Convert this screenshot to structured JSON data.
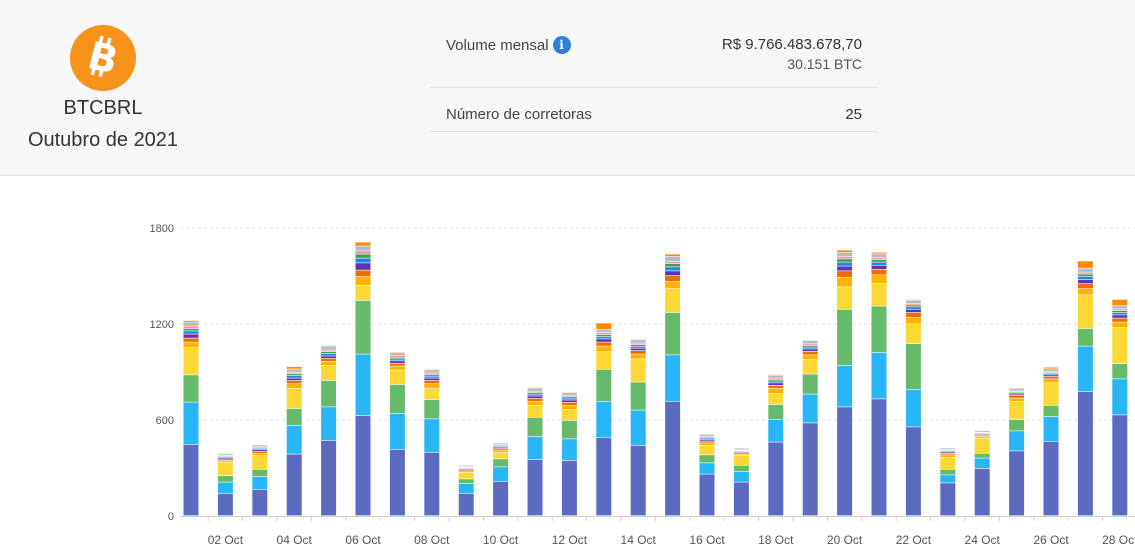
{
  "header": {
    "pair": "BTCBRL",
    "period": "Outubro de 2021",
    "coin_icon": "bitcoin-icon",
    "coin_color": "#f7931a",
    "volume_label": "Volume mensal",
    "volume_brl": "R$ 9.766.483.678,70",
    "volume_btc": "30.151 BTC",
    "info_icon": "info-icon",
    "brokers_label": "Número de corretoras",
    "brokers_value": "25"
  },
  "chart_data": {
    "type": "bar",
    "stacked": true,
    "grid": true,
    "ylim": [
      0,
      1800
    ],
    "y_ticks": [
      "0",
      "600",
      "1200",
      "1800"
    ],
    "categories": [
      "01 Oct",
      "02 Oct",
      "03 Oct",
      "04 Oct",
      "05 Oct",
      "06 Oct",
      "07 Oct",
      "08 Oct",
      "09 Oct",
      "10 Oct",
      "11 Oct",
      "12 Oct",
      "13 Oct",
      "14 Oct",
      "15 Oct",
      "16 Oct",
      "17 Oct",
      "18 Oct",
      "19 Oct",
      "20 Oct",
      "21 Oct",
      "22 Oct",
      "23 Oct",
      "24 Oct",
      "25 Oct",
      "26 Oct",
      "27 Oct",
      "28 Oct"
    ],
    "x_tick_labels": [
      "02 Oct",
      "04 Oct",
      "06 Oct",
      "08 Oct",
      "10 Oct",
      "12 Oct",
      "14 Oct",
      "16 Oct",
      "18 Oct",
      "20 Oct",
      "22 Oct",
      "24 Oct",
      "26 Oct",
      "28 Oct"
    ],
    "series": [
      {
        "color": "#5c6bc0",
        "values": [
          445,
          140,
          165,
          385,
          470,
          625,
          415,
          395,
          140,
          215,
          350,
          345,
          490,
          440,
          715,
          260,
          210,
          460,
          580,
          680,
          730,
          555,
          205,
          295,
          405,
          465,
          775,
          630
        ]
      },
      {
        "color": "#29b6f6",
        "values": [
          265,
          70,
          80,
          180,
          210,
          385,
          225,
          210,
          60,
          90,
          145,
          135,
          225,
          220,
          290,
          70,
          65,
          140,
          180,
          260,
          290,
          235,
          50,
          65,
          125,
          155,
          285,
          225
        ]
      },
      {
        "color": "#66bb6a",
        "values": [
          170,
          40,
          45,
          105,
          165,
          335,
          180,
          120,
          30,
          50,
          120,
          115,
          200,
          175,
          265,
          50,
          40,
          95,
          125,
          350,
          290,
          285,
          35,
          30,
          70,
          70,
          110,
          95
        ]
      },
      {
        "color": "#fdd835",
        "values": [
          170,
          85,
          85,
          125,
          95,
          95,
          90,
          70,
          40,
          40,
          75,
          70,
          110,
          145,
          150,
          60,
          60,
          70,
          90,
          140,
          140,
          125,
          75,
          95,
          115,
          140,
          210,
          225
        ]
      },
      {
        "color": "#ffb300",
        "values": [
          35,
          10,
          15,
          30,
          25,
          55,
          25,
          30,
          10,
          15,
          25,
          25,
          35,
          30,
          45,
          15,
          10,
          30,
          30,
          60,
          55,
          40,
          15,
          10,
          20,
          25,
          40,
          35
        ]
      },
      {
        "color": "#ef6c00",
        "values": [
          25,
          10,
          12,
          20,
          18,
          40,
          18,
          20,
          8,
          10,
          18,
          18,
          25,
          22,
          35,
          12,
          8,
          20,
          22,
          40,
          35,
          30,
          10,
          8,
          15,
          15,
          30,
          25
        ]
      },
      {
        "color": "#5e35b1",
        "values": [
          25,
          8,
          10,
          15,
          15,
          45,
          15,
          15,
          6,
          8,
          15,
          15,
          20,
          15,
          30,
          10,
          6,
          15,
          15,
          30,
          25,
          20,
          8,
          6,
          10,
          10,
          25,
          20
        ]
      },
      {
        "color": "#1e88e5",
        "values": [
          20,
          6,
          8,
          15,
          15,
          30,
          12,
          12,
          5,
          6,
          12,
          12,
          15,
          12,
          25,
          8,
          5,
          12,
          12,
          25,
          20,
          15,
          6,
          5,
          8,
          8,
          20,
          15
        ]
      },
      {
        "color": "#43a047",
        "values": [
          15,
          5,
          6,
          12,
          12,
          25,
          10,
          10,
          4,
          5,
          10,
          10,
          12,
          10,
          20,
          6,
          4,
          10,
          10,
          20,
          15,
          12,
          5,
          4,
          6,
          6,
          15,
          12
        ]
      },
      {
        "color": "#f48fb1",
        "values": [
          15,
          5,
          6,
          10,
          10,
          20,
          10,
          10,
          4,
          5,
          8,
          8,
          12,
          10,
          15,
          6,
          4,
          8,
          10,
          15,
          12,
          10,
          4,
          4,
          6,
          6,
          12,
          10
        ]
      },
      {
        "color": "#b0bec5",
        "values": [
          25,
          10,
          10,
          20,
          25,
          30,
          20,
          20,
          8,
          10,
          20,
          18,
          20,
          20,
          30,
          12,
          10,
          18,
          20,
          25,
          25,
          20,
          10,
          10,
          15,
          18,
          25,
          20
        ]
      },
      {
        "color": "#fb8c00",
        "values": [
          10,
          0,
          0,
          15,
          5,
          25,
          5,
          5,
          0,
          0,
          5,
          0,
          40,
          5,
          15,
          0,
          0,
          5,
          5,
          15,
          10,
          5,
          0,
          0,
          5,
          10,
          45,
          40
        ]
      }
    ]
  }
}
